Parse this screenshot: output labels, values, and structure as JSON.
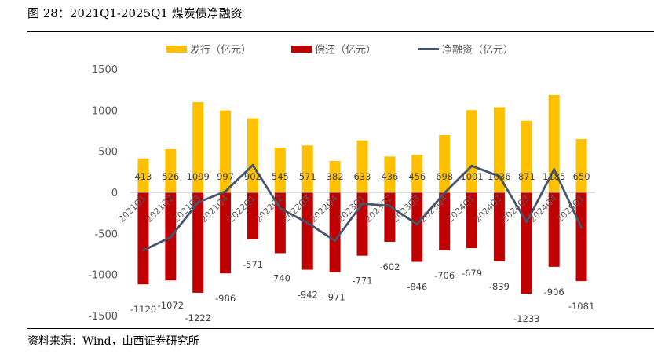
{
  "header": {
    "title": "图 28：2021Q1-2025Q1 煤炭债净融资"
  },
  "footer": {
    "source": "资料来源：Wind，山西证券研究所"
  },
  "chart_data": {
    "type": "bar",
    "categories": [
      "2021Q1",
      "2021Q2",
      "2021Q3",
      "2021Q4",
      "2022Q1",
      "2022Q2",
      "2022Q3",
      "2022Q4",
      "2023Q1",
      "2023Q2",
      "2023Q3",
      "2023Q4",
      "2024Q1",
      "2024Q2",
      "2024Q3",
      "2024Q4",
      "2025Q1"
    ],
    "series": [
      {
        "name": "发行（亿元）",
        "kind": "bar",
        "color": "#FFC000",
        "values": [
          413,
          526,
          1099,
          997,
          902,
          545,
          571,
          382,
          633,
          436,
          456,
          698,
          1001,
          1036,
          871,
          1185,
          650
        ]
      },
      {
        "name": "偿还（亿元）",
        "kind": "bar",
        "color": "#C00000",
        "values": [
          -1120,
          -1072,
          -1222,
          -986,
          -571,
          -740,
          -942,
          -971,
          -771,
          -602,
          -846,
          -706,
          -679,
          -839,
          -1233,
          -906,
          -1081
        ]
      },
      {
        "name": "净融资（亿元）",
        "kind": "line",
        "color": "#44546A",
        "values": [
          -707,
          -546,
          -123,
          11,
          331,
          -195,
          -371,
          -589,
          -138,
          -166,
          -390,
          -8,
          322,
          197,
          -362,
          279,
          -431
        ]
      }
    ],
    "ylim": [
      -1500,
      1500
    ],
    "yticks": [
      -1500,
      -1000,
      -500,
      0,
      500,
      1000,
      1500
    ],
    "legend_position": "top"
  }
}
